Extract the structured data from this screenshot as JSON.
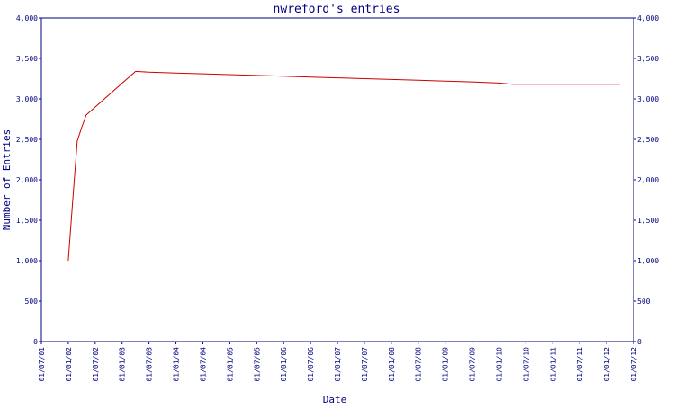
{
  "chart_data": {
    "type": "line",
    "title": "nwreford's entries",
    "xlabel": "Date",
    "ylabel": "Number of Entries",
    "ylim": [
      0,
      4000
    ],
    "y_ticks": [
      0,
      500,
      1000,
      1500,
      2000,
      2500,
      3000,
      3500,
      4000
    ],
    "y_tick_labels": [
      "0",
      "500",
      "1,000",
      "1,500",
      "2,000",
      "2,500",
      "3,000",
      "3,500",
      "4,000"
    ],
    "x_tick_labels": [
      "01/07/01",
      "01/01/02",
      "01/07/02",
      "01/01/03",
      "01/07/03",
      "01/01/04",
      "01/07/04",
      "01/01/05",
      "01/07/05",
      "01/01/06",
      "01/07/06",
      "01/01/07",
      "01/07/07",
      "01/01/08",
      "01/07/08",
      "01/01/09",
      "01/07/09",
      "01/01/10",
      "01/07/10",
      "01/01/11",
      "01/07/11",
      "01/01/12",
      "01/07/12"
    ],
    "secondary_y_axis": true,
    "grid": false,
    "colors": {
      "series": "#cc0000",
      "axis": "#000080",
      "text": "#000080",
      "background": "#ffffff"
    },
    "series": [
      {
        "x": [
          "01/01/02",
          "01/02/02",
          "01/03/02",
          "01/04/02",
          "01/05/02",
          "01/06/02",
          "01/04/03",
          "01/07/03",
          "01/01/04",
          "01/07/04",
          "01/01/05",
          "01/07/05",
          "01/01/06",
          "01/07/06",
          "01/01/07",
          "01/07/07",
          "01/01/08",
          "01/07/08",
          "01/01/09",
          "01/07/09",
          "01/01/10",
          "01/04/10",
          "01/07/10",
          "01/01/11",
          "01/07/11",
          "01/01/12",
          "01/04/12"
        ],
        "values": [
          1000,
          1750,
          2480,
          2650,
          2800,
          2850,
          3340,
          3330,
          3320,
          3310,
          3300,
          3290,
          3280,
          3270,
          3260,
          3250,
          3240,
          3230,
          3220,
          3210,
          3195,
          3180,
          3180,
          3180,
          3180,
          3180,
          3180
        ]
      }
    ]
  }
}
